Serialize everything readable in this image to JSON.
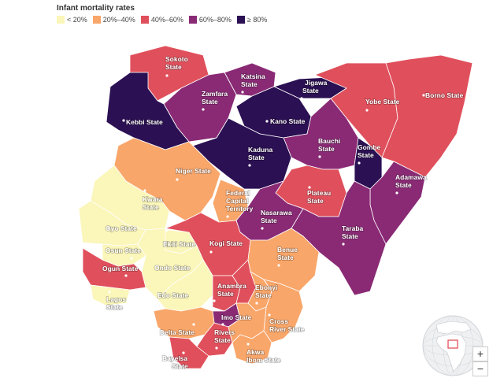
{
  "legend": {
    "title": "Infant mortality rates",
    "items": [
      {
        "label": "< 20%",
        "color": "#fbf6b9"
      },
      {
        "label": "20%–40%",
        "color": "#f9a66a"
      },
      {
        "label": "40%–60%",
        "color": "#e0505c"
      },
      {
        "label": "60%–80%",
        "color": "#8a2a75"
      },
      {
        "label": "≥ 80%",
        "color": "#2b1053"
      }
    ]
  },
  "states": [
    {
      "name": "Sokoto State",
      "color": "#e0505c"
    },
    {
      "name": "Katsina State",
      "color": "#8a2a75"
    },
    {
      "name": "Jigawa State",
      "color": "#2b1053"
    },
    {
      "name": "Zamfara State",
      "color": "#8a2a75"
    },
    {
      "name": "Yobe State",
      "color": "#e0505c"
    },
    {
      "name": "Borno State",
      "color": "#e0505c"
    },
    {
      "name": "Kano State",
      "color": "#2b1053"
    },
    {
      "name": "Kebbi State",
      "color": "#2b1053"
    },
    {
      "name": "Bauchi State",
      "color": "#8a2a75"
    },
    {
      "name": "Gombe State",
      "color": "#2b1053"
    },
    {
      "name": "Kaduna State",
      "color": "#2b1053"
    },
    {
      "name": "Niger State",
      "color": "#f9a66a"
    },
    {
      "name": "Adamawa State",
      "color": "#8a2a75"
    },
    {
      "name": "Kwara State",
      "color": "#fbf6b9"
    },
    {
      "name": "Federal Capital Territory",
      "color": "#f9a66a"
    },
    {
      "name": "Plateau State",
      "color": "#e0505c"
    },
    {
      "name": "Nasarawa State",
      "color": "#8a2a75"
    },
    {
      "name": "Oyo State",
      "color": "#fbf6b9"
    },
    {
      "name": "Taraba State",
      "color": "#8a2a75"
    },
    {
      "name": "Ekiti State",
      "color": "#fbf6b9"
    },
    {
      "name": "Kogi State",
      "color": "#e0505c"
    },
    {
      "name": "Benue State",
      "color": "#f9a66a"
    },
    {
      "name": "Osun State",
      "color": "#fbf6b9"
    },
    {
      "name": "Ondo State",
      "color": "#fbf6b9"
    },
    {
      "name": "Ogun State",
      "color": "#e0505c"
    },
    {
      "name": "Lagos State",
      "color": "#fbf6b9"
    },
    {
      "name": "Edo State",
      "color": "#fbf6b9"
    },
    {
      "name": "Anambra State",
      "color": "#e0505c"
    },
    {
      "name": "Ebonyi State",
      "color": "#e0505c"
    },
    {
      "name": "Enugu State",
      "color": "#f9a66a"
    },
    {
      "name": "Imo State",
      "color": "#8a2a75"
    },
    {
      "name": "Delta State",
      "color": "#f9a66a"
    },
    {
      "name": "Cross River State",
      "color": "#f9a66a"
    },
    {
      "name": "Rivers State",
      "color": "#e0505c"
    },
    {
      "name": "Abia State",
      "color": "#f9a66a"
    },
    {
      "name": "Bayelsa State",
      "color": "#e0505c"
    },
    {
      "name": "Akwa Ibom State",
      "color": "#f9a66a"
    }
  ],
  "controls": {
    "zoom_in": "+",
    "zoom_out": "−"
  }
}
